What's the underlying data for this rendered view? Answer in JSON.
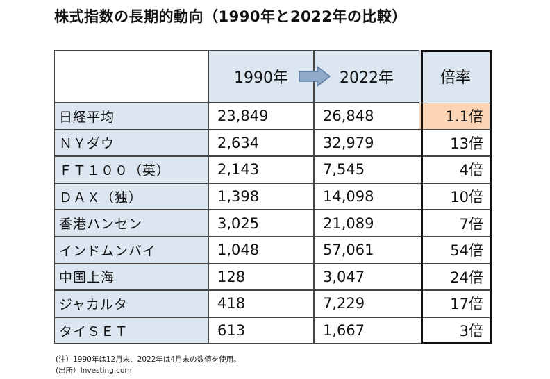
{
  "title": "株式指数の長期的動向（1990年と2022年の比較）",
  "columns": {
    "year1": "1990年",
    "year2": "2022年",
    "ratio": "倍率"
  },
  "arrow_icon": "right-arrow-icon",
  "highlight_color": "#fbd5b5",
  "header_color": "#dce6f1",
  "rows": [
    {
      "name": "日経平均",
      "v1990": "23,849",
      "v2022": "26,848",
      "ratio": "1.1倍"
    },
    {
      "name": "ＮＹダウ",
      "v1990": "2,634",
      "v2022": "32,979",
      "ratio": "13倍"
    },
    {
      "name": "ＦＴ１００（英）",
      "v1990": "2,143",
      "v2022": "7,545",
      "ratio": "4倍"
    },
    {
      "name": "ＤＡＸ（独）",
      "v1990": "1,398",
      "v2022": "14,098",
      "ratio": "10倍"
    },
    {
      "name": "香港ハンセン",
      "v1990": "3,025",
      "v2022": "21,089",
      "ratio": "7倍"
    },
    {
      "name": "インドムンバイ",
      "v1990": "1,048",
      "v2022": "57,061",
      "ratio": "54倍"
    },
    {
      "name": "中国上海",
      "v1990": "128",
      "v2022": "3,047",
      "ratio": "24倍"
    },
    {
      "name": "ジャカルタ",
      "v1990": "418",
      "v2022": "7,229",
      "ratio": "17倍"
    },
    {
      "name": "タイＳＥＴ",
      "v1990": "613",
      "v2022": "1,667",
      "ratio": "3倍"
    }
  ],
  "notes": {
    "note1": "(注）1990年は12月末、2022年は4月末の数値を使用。",
    "note2": "(出所）Investing.com"
  }
}
